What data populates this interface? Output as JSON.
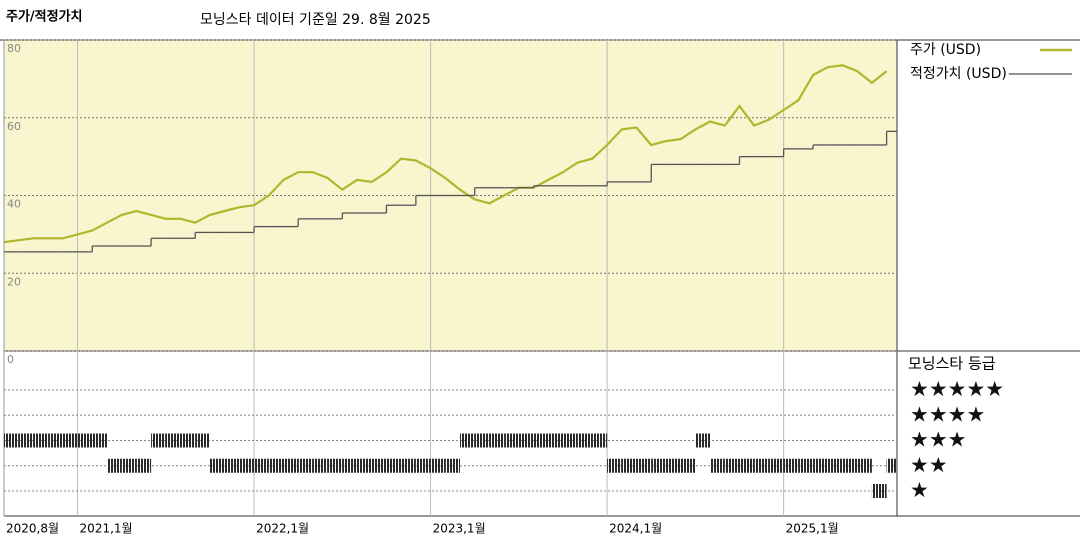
{
  "chart_data": {
    "type": "line",
    "title": "주가/적정가치",
    "subtitle": "모닝스타 데이터 기준일 29. 8월 2025",
    "background": "#f9f5cf",
    "grid": true,
    "x": [
      "2020-08",
      "2020-09",
      "2020-10",
      "2020-11",
      "2020-12",
      "2021-01",
      "2021-02",
      "2021-03",
      "2021-04",
      "2021-05",
      "2021-06",
      "2021-07",
      "2021-08",
      "2021-09",
      "2021-10",
      "2021-11",
      "2021-12",
      "2022-01",
      "2022-02",
      "2022-03",
      "2022-04",
      "2022-05",
      "2022-06",
      "2022-07",
      "2022-08",
      "2022-09",
      "2022-10",
      "2022-11",
      "2022-12",
      "2023-01",
      "2023-02",
      "2023-03",
      "2023-04",
      "2023-05",
      "2023-06",
      "2023-07",
      "2023-08",
      "2023-09",
      "2023-10",
      "2023-11",
      "2023-12",
      "2024-01",
      "2024-02",
      "2024-03",
      "2024-04",
      "2024-05",
      "2024-06",
      "2024-07",
      "2024-08",
      "2024-09",
      "2024-10",
      "2024-11",
      "2024-12",
      "2025-01",
      "2025-02",
      "2025-03",
      "2025-04",
      "2025-05",
      "2025-06",
      "2025-07",
      "2025-08"
    ],
    "xticks": [
      {
        "value": "2020-08",
        "label": "2020,8월"
      },
      {
        "value": "2021-01",
        "label": "2021,1월"
      },
      {
        "value": "2022-01",
        "label": "2022,1월"
      },
      {
        "value": "2023-01",
        "label": "2023,1월"
      },
      {
        "value": "2024-01",
        "label": "2024,1월"
      },
      {
        "value": "2025-01",
        "label": "2025,1월"
      }
    ],
    "ylim": [
      0,
      80
    ],
    "yticks": [
      0,
      20,
      40,
      60,
      80
    ],
    "series": [
      {
        "name": "주가 (USD)",
        "color": "#b3b52c",
        "values": [
          28,
          28.5,
          29,
          29,
          29,
          30,
          31,
          33,
          35,
          36,
          35,
          34,
          34,
          33,
          35,
          36,
          37,
          37.5,
          40,
          44,
          46,
          46,
          44.5,
          41.5,
          44,
          43.5,
          46,
          49.5,
          49,
          47,
          44.5,
          41.5,
          39,
          38,
          40,
          42,
          42,
          44,
          46,
          48.5,
          49.5,
          53,
          57,
          57.5,
          53,
          54,
          54.5,
          57,
          59,
          58,
          63,
          58,
          59.5,
          62,
          64.5,
          71,
          73,
          73.5,
          72,
          69,
          72
        ]
      },
      {
        "name": "적정가치 (USD)",
        "color": "#555555",
        "step": true,
        "values": [
          25.5,
          25.5,
          25.5,
          25.5,
          25.5,
          25.5,
          27,
          27,
          27,
          27,
          29,
          29,
          29,
          30.5,
          30.5,
          30.5,
          30.5,
          32,
          32,
          32,
          34,
          34,
          34,
          35.5,
          35.5,
          35.5,
          37.5,
          37.5,
          40,
          40,
          40,
          40,
          42,
          42,
          42,
          42,
          42.5,
          42.5,
          42.5,
          42.5,
          42.5,
          43.5,
          43.5,
          43.5,
          48,
          48,
          48,
          48,
          48,
          48,
          50,
          50,
          50,
          52,
          52,
          53,
          53,
          53,
          53,
          53,
          56.5
        ]
      }
    ],
    "rating": {
      "title": "모닝스타 등급",
      "levels": [
        5,
        4,
        3,
        2,
        1
      ],
      "labels": [
        "★★★★★",
        "★★★★",
        "★★★",
        "★★",
        "★"
      ],
      "color": "#2a2a2a",
      "values": [
        3,
        3,
        3,
        3,
        3,
        3,
        3,
        2,
        2,
        2,
        3,
        3,
        3,
        3,
        2,
        2,
        2,
        2,
        2,
        2,
        2,
        2,
        2,
        2,
        2,
        2,
        2,
        2,
        2,
        2,
        2,
        3,
        3,
        3,
        3,
        3,
        3,
        3,
        3,
        3,
        3,
        2,
        2,
        2,
        2,
        2,
        2,
        3,
        2,
        2,
        2,
        2,
        2,
        2,
        2,
        2,
        2,
        2,
        2,
        1,
        2
      ]
    }
  }
}
